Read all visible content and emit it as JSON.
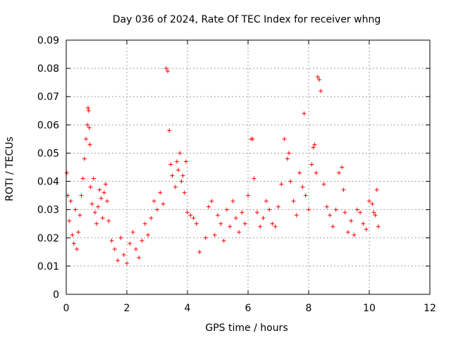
{
  "chart_data": {
    "type": "scatter",
    "title": "Day 036 of 2024, Rate Of TEC Index for receiver whng",
    "xlabel": "GPS time / hours",
    "ylabel": "ROTI / TECUs",
    "xlim": [
      0,
      12
    ],
    "ylim": [
      0,
      0.09
    ],
    "xticks": [
      0,
      2,
      4,
      6,
      8,
      10,
      12
    ],
    "yticks": [
      0,
      0.01,
      0.02,
      0.03,
      0.04,
      0.05,
      0.06,
      0.07,
      0.08,
      0.09
    ],
    "xtick_labels": [
      "0",
      "2",
      "4",
      "6",
      "8",
      "10",
      "12"
    ],
    "ytick_labels": [
      "0",
      "0.01",
      "0.02",
      "0.03",
      "0.04",
      "0.05",
      "0.06",
      "0.07",
      "0.08",
      "0.09"
    ],
    "grid": true,
    "marker": "plus",
    "color": "#ff0000",
    "series": [
      {
        "name": "ROTI",
        "x": [
          0.02,
          0.05,
          0.1,
          0.15,
          0.2,
          0.25,
          0.3,
          0.35,
          0.4,
          0.45,
          0.5,
          0.55,
          0.6,
          0.65,
          0.7,
          0.72,
          0.74,
          0.76,
          0.78,
          0.8,
          0.85,
          0.9,
          0.95,
          1.0,
          1.05,
          1.1,
          1.15,
          1.2,
          1.25,
          1.3,
          1.35,
          1.4,
          1.5,
          1.6,
          1.7,
          1.8,
          1.9,
          2.0,
          2.1,
          2.2,
          2.3,
          2.4,
          2.5,
          2.6,
          2.7,
          2.8,
          2.9,
          3.0,
          3.1,
          3.2,
          3.3,
          3.35,
          3.4,
          3.45,
          3.5,
          3.6,
          3.65,
          3.7,
          3.75,
          3.8,
          3.85,
          3.9,
          3.95,
          4.0,
          4.1,
          4.2,
          4.3,
          4.4,
          4.6,
          4.7,
          4.8,
          4.9,
          5.0,
          5.1,
          5.2,
          5.3,
          5.4,
          5.5,
          5.6,
          5.7,
          5.8,
          5.9,
          6.0,
          6.1,
          6.15,
          6.2,
          6.3,
          6.4,
          6.5,
          6.6,
          6.7,
          6.8,
          6.9,
          7.0,
          7.1,
          7.2,
          7.3,
          7.35,
          7.4,
          7.5,
          7.6,
          7.7,
          7.8,
          7.85,
          7.9,
          8.0,
          8.1,
          8.15,
          8.2,
          8.25,
          8.3,
          8.35,
          8.4,
          8.5,
          8.6,
          8.7,
          8.8,
          8.9,
          9.0,
          9.1,
          9.15,
          9.2,
          9.3,
          9.4,
          9.5,
          9.6,
          9.7,
          9.8,
          9.9,
          10.0,
          10.1,
          10.15,
          10.2,
          10.25,
          10.3
        ],
        "y": [
          0.043,
          0.035,
          0.026,
          0.033,
          0.021,
          0.018,
          0.03,
          0.016,
          0.022,
          0.028,
          0.035,
          0.041,
          0.048,
          0.055,
          0.06,
          0.066,
          0.065,
          0.059,
          0.053,
          0.038,
          0.032,
          0.041,
          0.029,
          0.025,
          0.031,
          0.037,
          0.034,
          0.027,
          0.036,
          0.039,
          0.033,
          0.026,
          0.019,
          0.016,
          0.012,
          0.02,
          0.014,
          0.011,
          0.018,
          0.022,
          0.016,
          0.013,
          0.019,
          0.025,
          0.021,
          0.027,
          0.033,
          0.03,
          0.036,
          0.032,
          0.08,
          0.079,
          0.058,
          0.046,
          0.042,
          0.038,
          0.047,
          0.044,
          0.05,
          0.04,
          0.042,
          0.036,
          0.047,
          0.029,
          0.028,
          0.027,
          0.025,
          0.015,
          0.02,
          0.031,
          0.033,
          0.021,
          0.028,
          0.025,
          0.019,
          0.03,
          0.024,
          0.033,
          0.027,
          0.022,
          0.029,
          0.025,
          0.035,
          0.055,
          0.055,
          0.041,
          0.029,
          0.024,
          0.027,
          0.033,
          0.03,
          0.025,
          0.024,
          0.031,
          0.039,
          0.055,
          0.048,
          0.05,
          0.04,
          0.033,
          0.028,
          0.043,
          0.038,
          0.064,
          0.035,
          0.03,
          0.046,
          0.052,
          0.053,
          0.043,
          0.077,
          0.076,
          0.072,
          0.039,
          0.031,
          0.028,
          0.024,
          0.03,
          0.043,
          0.045,
          0.037,
          0.029,
          0.022,
          0.026,
          0.021,
          0.03,
          0.029,
          0.025,
          0.023,
          0.033,
          0.032,
          0.029,
          0.028,
          0.037,
          0.024
        ]
      }
    ]
  }
}
